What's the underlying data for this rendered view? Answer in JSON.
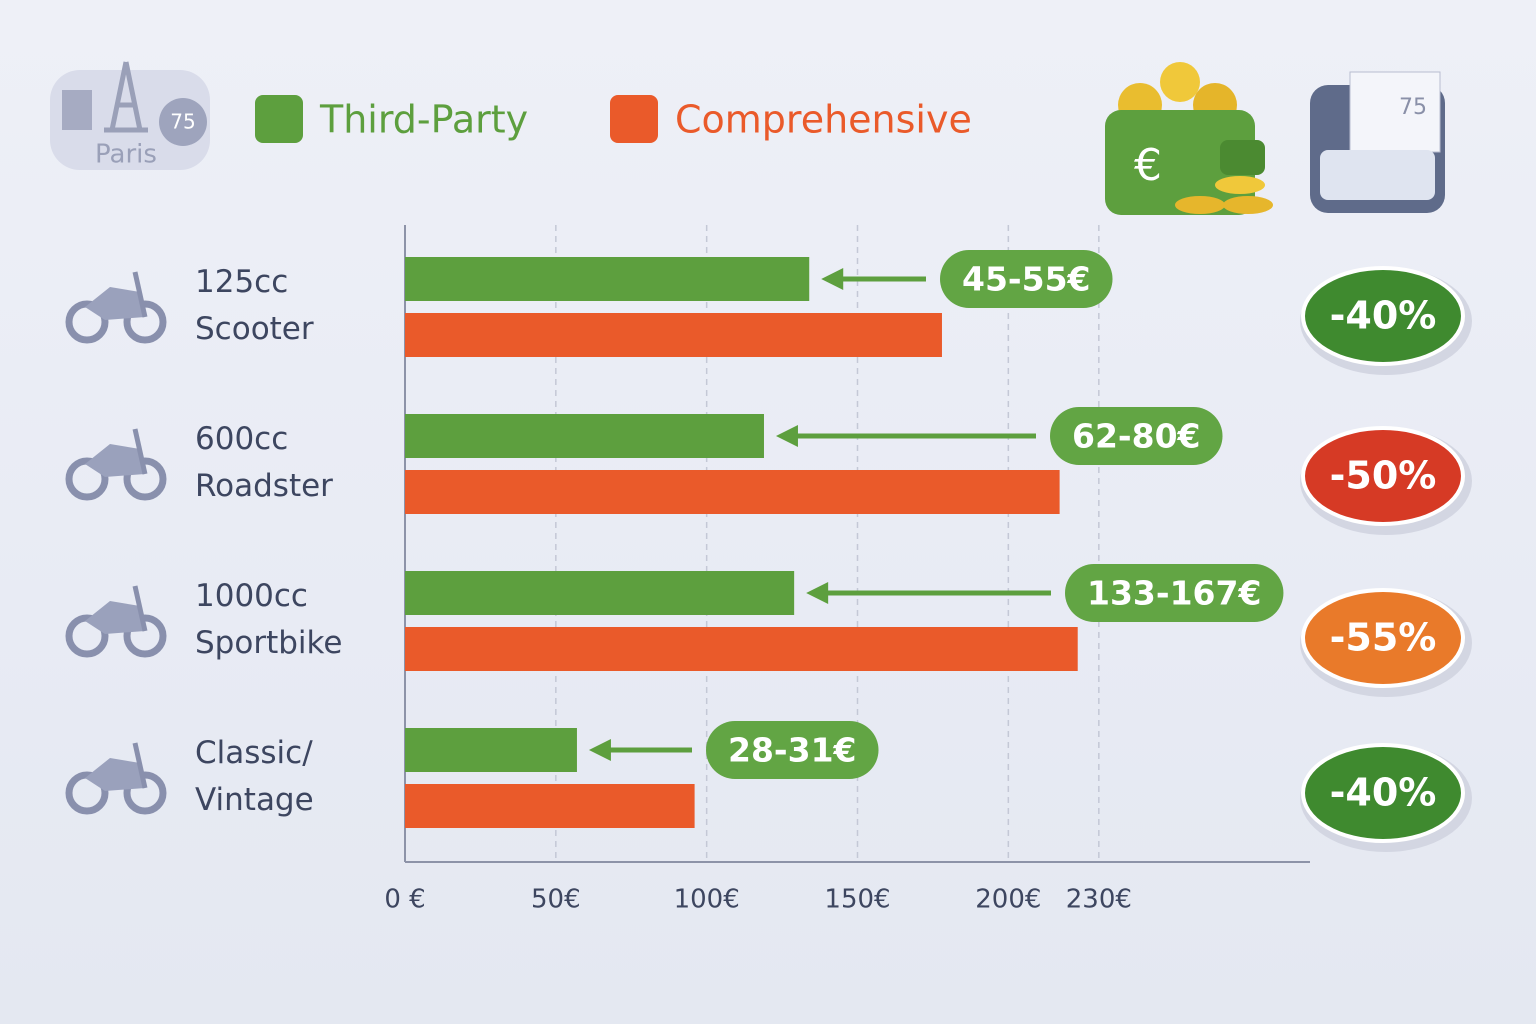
{
  "chart_data": {
    "type": "hbar",
    "categories": [
      "125cc Scooter",
      "600cc Roadster",
      "1000cc Sportbike",
      "Classic/ Vintage"
    ],
    "series": [
      {
        "name": "Third-Party",
        "color": "#5d9f3e",
        "values": [
          134,
          119,
          129,
          57
        ]
      },
      {
        "name": "Comprehensive",
        "color": "#ea5a2a",
        "values": [
          178,
          217,
          223,
          96
        ]
      }
    ],
    "xlim": [
      0,
      300
    ],
    "xticks": [
      {
        "value": 0,
        "label": "0 €"
      },
      {
        "value": 50,
        "label": "50€"
      },
      {
        "value": 100,
        "label": "100€"
      },
      {
        "value": 150,
        "label": "150€"
      },
      {
        "value": 200,
        "label": "200€"
      },
      {
        "value": 230,
        "label": "230€"
      }
    ],
    "grid": true,
    "annotations": [
      "45-55€",
      "62-80€",
      "133-167€",
      "28-31€"
    ],
    "badges": [
      {
        "label": "-40%",
        "color": "#3f8a2f"
      },
      {
        "label": "-50%",
        "color": "#d63a25"
      },
      {
        "label": "-55%",
        "color": "#e97a2a"
      },
      {
        "label": "-40%",
        "color": "#3f8a2f"
      }
    ],
    "city": "Paris",
    "district": "75"
  }
}
